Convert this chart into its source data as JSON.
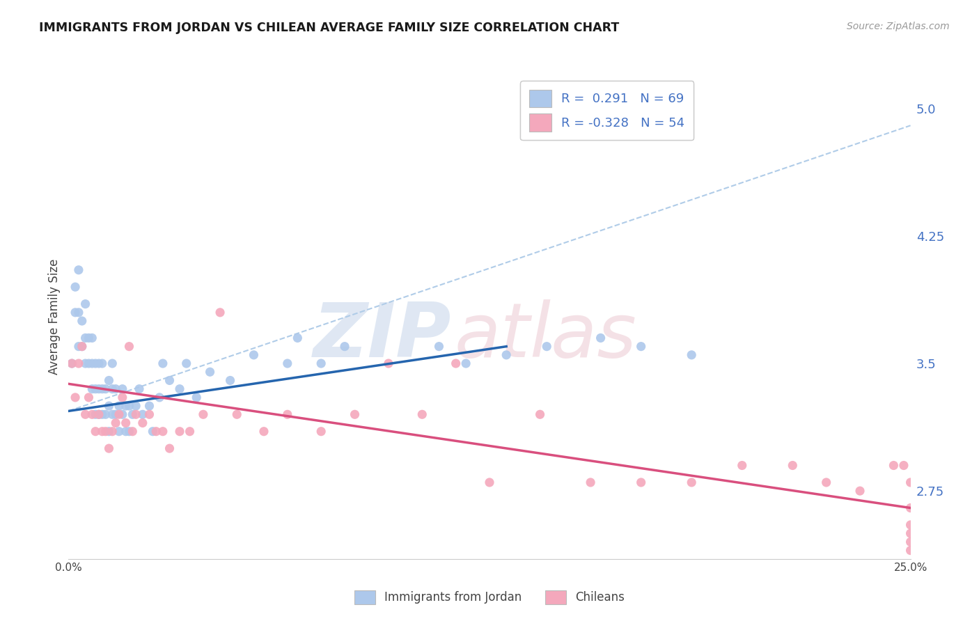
{
  "title": "IMMIGRANTS FROM JORDAN VS CHILEAN AVERAGE FAMILY SIZE CORRELATION CHART",
  "source": "Source: ZipAtlas.com",
  "ylabel": "Average Family Size",
  "xlim": [
    0.0,
    0.25
  ],
  "ylim": [
    2.35,
    5.2
  ],
  "xticks": [
    0.0,
    0.05,
    0.1,
    0.15,
    0.2,
    0.25
  ],
  "xticklabels": [
    "0.0%",
    "",
    "",
    "",
    "",
    "25.0%"
  ],
  "yticks_right": [
    2.75,
    3.5,
    4.25,
    5.0
  ],
  "jordan_color": "#adc8eb",
  "chilean_color": "#f4a8bc",
  "jordan_line_color": "#2565ae",
  "chilean_line_color": "#d94f7e",
  "dashed_line_color": "#b0cce8",
  "jordan_scatter_x": [
    0.001,
    0.002,
    0.002,
    0.003,
    0.003,
    0.003,
    0.004,
    0.004,
    0.005,
    0.005,
    0.005,
    0.006,
    0.006,
    0.007,
    0.007,
    0.007,
    0.008,
    0.008,
    0.008,
    0.009,
    0.009,
    0.009,
    0.01,
    0.01,
    0.01,
    0.011,
    0.011,
    0.012,
    0.012,
    0.012,
    0.013,
    0.013,
    0.013,
    0.014,
    0.014,
    0.015,
    0.015,
    0.016,
    0.016,
    0.017,
    0.017,
    0.018,
    0.018,
    0.019,
    0.02,
    0.021,
    0.022,
    0.024,
    0.025,
    0.027,
    0.028,
    0.03,
    0.033,
    0.035,
    0.038,
    0.042,
    0.048,
    0.055,
    0.065,
    0.068,
    0.075,
    0.082,
    0.11,
    0.118,
    0.13,
    0.142,
    0.158,
    0.17,
    0.185
  ],
  "jordan_scatter_y": [
    3.5,
    3.8,
    3.95,
    3.8,
    3.6,
    4.05,
    3.75,
    3.6,
    3.65,
    3.5,
    3.85,
    3.5,
    3.65,
    3.35,
    3.5,
    3.65,
    3.2,
    3.35,
    3.5,
    3.2,
    3.35,
    3.5,
    3.2,
    3.35,
    3.5,
    3.2,
    3.35,
    3.1,
    3.25,
    3.4,
    3.2,
    3.35,
    3.5,
    3.2,
    3.35,
    3.1,
    3.25,
    3.2,
    3.35,
    3.1,
    3.25,
    3.1,
    3.25,
    3.2,
    3.25,
    3.35,
    3.2,
    3.25,
    3.1,
    3.3,
    3.5,
    3.4,
    3.35,
    3.5,
    3.3,
    3.45,
    3.4,
    3.55,
    3.5,
    3.65,
    3.5,
    3.6,
    3.6,
    3.5,
    3.55,
    3.6,
    3.65,
    3.6,
    3.55
  ],
  "chilean_scatter_x": [
    0.001,
    0.002,
    0.003,
    0.004,
    0.005,
    0.006,
    0.007,
    0.008,
    0.009,
    0.01,
    0.011,
    0.012,
    0.013,
    0.014,
    0.015,
    0.016,
    0.017,
    0.018,
    0.019,
    0.02,
    0.022,
    0.024,
    0.026,
    0.028,
    0.03,
    0.033,
    0.036,
    0.04,
    0.045,
    0.05,
    0.058,
    0.065,
    0.075,
    0.085,
    0.095,
    0.105,
    0.115,
    0.125,
    0.14,
    0.155,
    0.17,
    0.185,
    0.2,
    0.215,
    0.225,
    0.235,
    0.245,
    0.248,
    0.25,
    0.25,
    0.25,
    0.25,
    0.25,
    0.25
  ],
  "chilean_scatter_y": [
    3.5,
    3.3,
    3.5,
    3.6,
    3.2,
    3.3,
    3.2,
    3.1,
    3.2,
    3.1,
    3.1,
    3.0,
    3.1,
    3.15,
    3.2,
    3.3,
    3.15,
    3.6,
    3.1,
    3.2,
    3.15,
    3.2,
    3.1,
    3.1,
    3.0,
    3.1,
    3.1,
    3.2,
    3.8,
    3.2,
    3.1,
    3.2,
    3.1,
    3.2,
    3.5,
    3.2,
    3.5,
    2.8,
    3.2,
    2.8,
    2.8,
    2.8,
    2.9,
    2.9,
    2.8,
    2.75,
    2.9,
    2.9,
    2.8,
    2.65,
    2.55,
    2.5,
    2.45,
    2.4
  ],
  "jordan_trendline_x": [
    0.0,
    0.13
  ],
  "jordan_trendline_y": [
    3.22,
    3.6
  ],
  "chilean_trendline_x": [
    0.0,
    0.25
  ],
  "chilean_trendline_y": [
    3.38,
    2.65
  ],
  "dashed_trendline_x": [
    0.0,
    0.25
  ],
  "dashed_trendline_y": [
    3.22,
    4.9
  ],
  "bg_color": "#ffffff",
  "grid_color": "#d8d8d8"
}
